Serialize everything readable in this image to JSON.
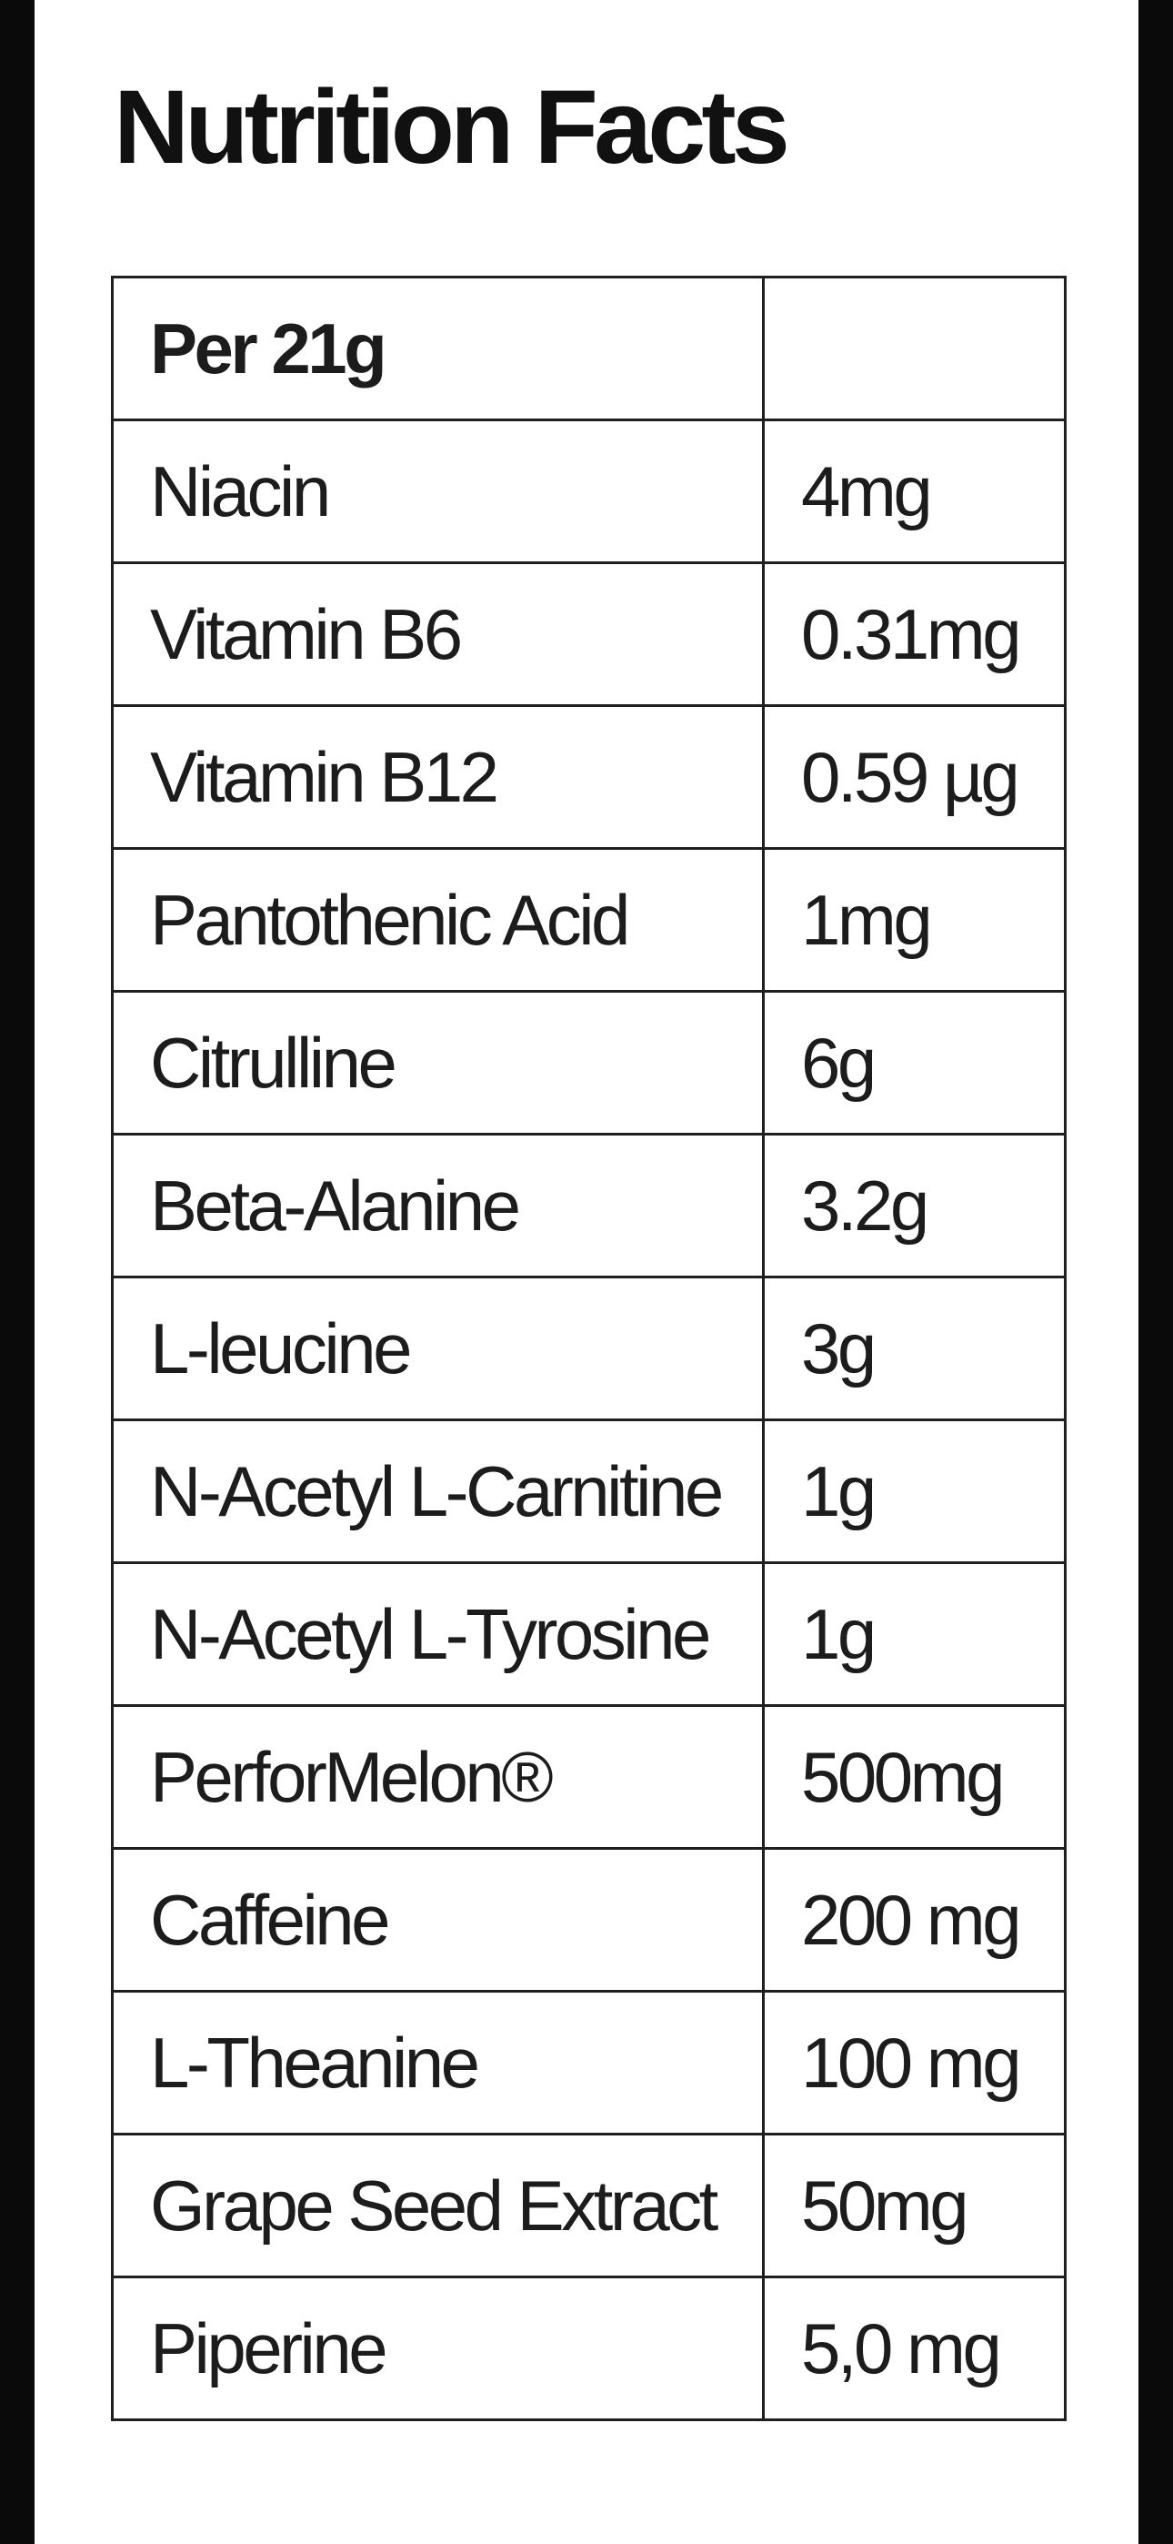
{
  "page": {
    "title": "Nutrition Facts"
  },
  "table": {
    "header": {
      "label": "Per 21g",
      "value": ""
    },
    "rows": [
      {
        "label": "Niacin",
        "value": "4mg"
      },
      {
        "label": "Vitamin B6",
        "value": "0.31mg"
      },
      {
        "label": "Vitamin B12",
        "value": "0.59 µg"
      },
      {
        "label": "Pantothenic Acid",
        "value": "1mg"
      },
      {
        "label": "Citrulline",
        "value": "6g"
      },
      {
        "label": "Beta-Alanine",
        "value": "3.2g"
      },
      {
        "label": "L-leucine",
        "value": "3g"
      },
      {
        "label": "N-Acetyl L-Carnitine",
        "value": "1g"
      },
      {
        "label": "N-Acetyl L-Tyrosine",
        "value": "1g"
      },
      {
        "label": "PerforMelon®",
        "value": "500mg"
      },
      {
        "label": "Caffeine",
        "value": "200 mg"
      },
      {
        "label": "L-Theanine",
        "value": "100 mg"
      },
      {
        "label": "Grape Seed Extract",
        "value": "50mg"
      },
      {
        "label": "Piperine",
        "value": "5,0 mg"
      }
    ]
  },
  "colors": {
    "letterbox": "#0a0a0a",
    "background": "#ffffff",
    "text": "#1c1c1c",
    "border": "#1f1f1f"
  }
}
